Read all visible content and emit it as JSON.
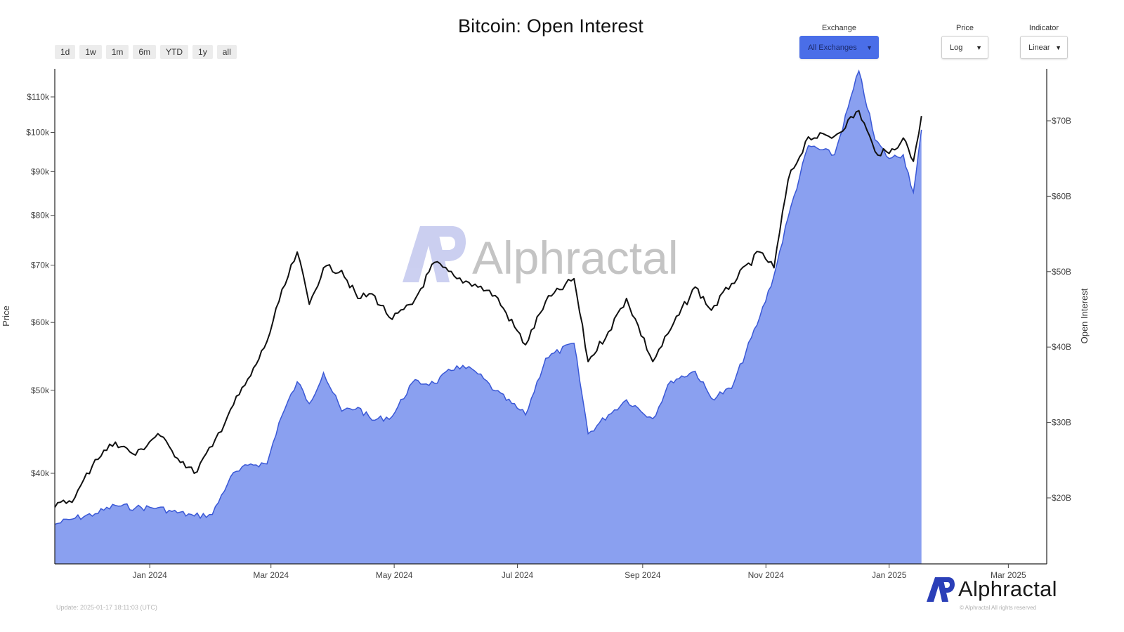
{
  "title": "Bitcoin: Open Interest",
  "range_buttons": [
    "1d",
    "1w",
    "1m",
    "6m",
    "YTD",
    "1y",
    "all"
  ],
  "controls": {
    "exchange": {
      "label": "Exchange",
      "value": "All Exchanges"
    },
    "price": {
      "label": "Price",
      "value": "Log"
    },
    "indicator": {
      "label": "Indicator",
      "value": "Linear"
    }
  },
  "watermark": "Alphractal",
  "footer": {
    "update": "Update: 2025-01-17 18:11:03 (UTC)",
    "logo_text": "Alphractal",
    "copyright": "© Alphractal All rights reserved"
  },
  "colors": {
    "oi_fill": "#8aa0f0",
    "oi_line": "#3a58d6",
    "price_line": "#111111",
    "accent": "#4a6ee8",
    "watermark_logo": "#c9cdf0",
    "watermark_text": "#c4c4c4",
    "logo_blue": "#2b3fb8"
  },
  "chart_data": {
    "type": "line",
    "title": "Bitcoin: Open Interest",
    "xlabel": "",
    "ylabel": "Price",
    "y2label": "Open Interest",
    "x_ticks": [
      "Jan 2024",
      "Mar 2024",
      "May 2024",
      "Jul 2024",
      "Sep 2024",
      "Nov 2024",
      "Jan 2025",
      "Mar 2025"
    ],
    "y_ticks_left": [
      "$40k",
      "$50k",
      "$60k",
      "$70k",
      "$80k",
      "$90k",
      "$100k",
      "$110k"
    ],
    "y_ticks_right": [
      "$20B",
      "$30B",
      "$40B",
      "$50B",
      "$60B",
      "$70B"
    ],
    "y_scale_left": "log",
    "y_scale_right": "linear",
    "xlim": [
      "2023-11-15",
      "2025-03-20"
    ],
    "grid": false,
    "legend": null,
    "series": [
      {
        "name": "Price",
        "axis": "left",
        "render": "line",
        "unit": "USD",
        "x": [
          "2023-11-15",
          "2023-11-25",
          "2023-12-05",
          "2023-12-15",
          "2023-12-25",
          "2024-01-05",
          "2024-01-12",
          "2024-01-23",
          "2024-02-01",
          "2024-02-10",
          "2024-02-20",
          "2024-02-28",
          "2024-03-05",
          "2024-03-14",
          "2024-03-20",
          "2024-03-27",
          "2024-04-05",
          "2024-04-13",
          "2024-04-20",
          "2024-04-30",
          "2024-05-10",
          "2024-05-21",
          "2024-06-01",
          "2024-06-10",
          "2024-06-20",
          "2024-07-05",
          "2024-07-15",
          "2024-07-29",
          "2024-08-05",
          "2024-08-15",
          "2024-08-24",
          "2024-09-06",
          "2024-09-15",
          "2024-09-27",
          "2024-10-05",
          "2024-10-15",
          "2024-10-29",
          "2024-11-05",
          "2024-11-12",
          "2024-11-22",
          "2024-12-05",
          "2024-12-17",
          "2024-12-25",
          "2025-01-01",
          "2025-01-08",
          "2025-01-13",
          "2025-01-17"
        ],
        "values": [
          36500,
          37500,
          41500,
          43500,
          42000,
          44500,
          42500,
          40000,
          43000,
          47500,
          52000,
          57000,
          63500,
          72500,
          63000,
          69500,
          69000,
          64000,
          64800,
          60500,
          63000,
          70500,
          67500,
          66500,
          64500,
          56500,
          63500,
          67500,
          54000,
          58500,
          64000,
          54000,
          59000,
          66000,
          62000,
          66600,
          72500,
          69500,
          88000,
          98800,
          99000,
          106000,
          95000,
          94500,
          98500,
          92500,
          104500
        ]
      },
      {
        "name": "Open Interest",
        "axis": "right",
        "render": "area",
        "unit": "USD billions",
        "x": [
          "2023-11-15",
          "2023-11-25",
          "2023-12-05",
          "2023-12-15",
          "2023-12-25",
          "2024-01-05",
          "2024-01-12",
          "2024-01-23",
          "2024-02-01",
          "2024-02-10",
          "2024-02-20",
          "2024-02-28",
          "2024-03-05",
          "2024-03-14",
          "2024-03-20",
          "2024-03-27",
          "2024-04-05",
          "2024-04-13",
          "2024-04-20",
          "2024-04-30",
          "2024-05-10",
          "2024-05-21",
          "2024-06-01",
          "2024-06-10",
          "2024-06-20",
          "2024-07-05",
          "2024-07-15",
          "2024-07-29",
          "2024-08-05",
          "2024-08-15",
          "2024-08-24",
          "2024-09-06",
          "2024-09-15",
          "2024-09-27",
          "2024-10-05",
          "2024-10-15",
          "2024-10-29",
          "2024-11-05",
          "2024-11-12",
          "2024-11-22",
          "2024-12-05",
          "2024-12-17",
          "2024-12-25",
          "2025-01-01",
          "2025-01-08",
          "2025-01-13",
          "2025-01-17"
        ],
        "values": [
          16.5,
          17.3,
          17.9,
          19.0,
          18.7,
          18.7,
          18.2,
          17.6,
          17.8,
          22.8,
          24.5,
          24.5,
          30.0,
          35.4,
          32.5,
          36.6,
          31.5,
          32.0,
          30.3,
          30.8,
          35.3,
          35.2,
          37.5,
          36.8,
          34.2,
          31.0,
          38.5,
          40.5,
          28.5,
          31.0,
          33.0,
          30.5,
          35.5,
          36.8,
          33.2,
          34.5,
          44.0,
          49.5,
          57.2,
          66.7,
          65.5,
          76.6,
          67.5,
          65.0,
          65.5,
          60.5,
          68.8
        ]
      }
    ]
  }
}
